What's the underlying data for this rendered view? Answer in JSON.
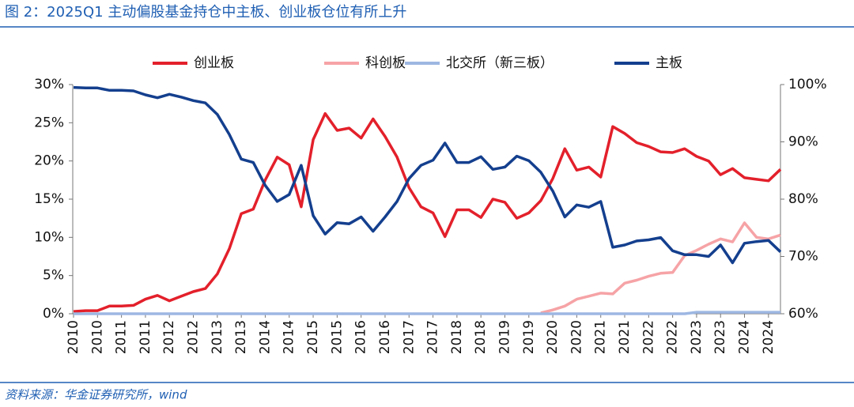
{
  "chart_data": {
    "type": "line",
    "title": "图 2：2025Q1 主动偏股基金持仓中主板、创业板仓位有所上升",
    "source": "资料来源：华金证券研究所，wind",
    "categories": [
      "2010",
      null,
      "2010",
      null,
      "2011",
      null,
      "2011",
      null,
      "2012",
      null,
      "2012",
      null,
      "2013",
      null,
      "2013",
      null,
      "2014",
      null,
      "2014",
      null,
      "2015",
      null,
      "2015",
      null,
      "2016",
      null,
      "2016",
      null,
      "2017",
      null,
      "2017",
      null,
      "2018",
      null,
      "2018",
      null,
      "2019",
      null,
      "2019",
      null,
      "2020",
      null,
      "2020",
      null,
      "2021",
      null,
      "2021",
      null,
      "2022",
      null,
      "2022",
      null,
      "2023",
      null,
      "2023",
      null,
      "2024",
      null,
      "2024",
      null
    ],
    "ylim": [
      0,
      30
    ],
    "yticks": [
      {
        "value": 0,
        "label": "0%"
      },
      {
        "value": 5,
        "label": "5%"
      },
      {
        "value": 10,
        "label": "10%"
      },
      {
        "value": 15,
        "label": "15%"
      },
      {
        "value": 20,
        "label": "20%"
      },
      {
        "value": 25,
        "label": "25%"
      },
      {
        "value": 30,
        "label": "30%"
      }
    ],
    "y2lim": [
      60,
      100
    ],
    "y2ticks": [
      {
        "value": 60,
        "label": "60%"
      },
      {
        "value": 70,
        "label": "70%"
      },
      {
        "value": 80,
        "label": "80%"
      },
      {
        "value": 90,
        "label": "90%"
      },
      {
        "value": 100,
        "label": "100%"
      }
    ],
    "grid": false,
    "legend": "top",
    "series": [
      {
        "name": "创业板",
        "color": "#e3202b",
        "values": [
          0.3,
          0.4,
          0.4,
          1.0,
          1.0,
          1.1,
          1.9,
          2.4,
          1.7,
          2.3,
          2.9,
          3.3,
          5.2,
          8.5,
          13.1,
          13.7,
          17.5,
          20.5,
          19.5,
          14.0,
          22.8,
          26.2,
          24.0,
          24.3,
          23.0,
          25.5,
          23.2,
          20.5,
          16.5,
          14.0,
          13.2,
          10.1,
          13.6,
          13.6,
          12.6,
          15.0,
          14.6,
          12.5,
          13.2,
          14.8,
          17.7,
          21.6,
          18.8,
          19.2,
          17.9,
          24.5,
          23.6,
          22.4,
          21.9,
          21.2,
          21.1,
          21.6,
          20.6,
          20.0,
          18.2,
          19.0,
          17.8,
          17.6,
          17.4,
          18.9
        ]
      },
      {
        "name": "科创板",
        "color": "#f6a3a6",
        "values": [
          null,
          null,
          null,
          null,
          null,
          null,
          null,
          null,
          null,
          null,
          null,
          null,
          null,
          null,
          null,
          null,
          null,
          null,
          null,
          null,
          null,
          null,
          null,
          null,
          null,
          null,
          null,
          null,
          null,
          null,
          null,
          null,
          null,
          null,
          null,
          null,
          null,
          null,
          null,
          0.1,
          0.5,
          1.0,
          1.9,
          2.3,
          2.7,
          2.6,
          4.0,
          4.4,
          4.9,
          5.3,
          5.4,
          7.6,
          8.3,
          9.1,
          9.8,
          9.4,
          11.9,
          10.0,
          9.8,
          10.3
        ]
      },
      {
        "name": "北交所（新三板）",
        "color": "#9db7e2",
        "values": [
          0,
          0,
          0,
          0,
          0,
          0,
          0,
          0,
          0,
          0,
          0,
          0,
          0,
          0,
          0,
          0,
          0,
          0,
          0,
          0,
          0,
          0,
          0,
          0,
          0,
          0,
          0,
          0,
          0,
          0,
          0,
          0,
          0,
          0,
          0,
          0,
          0,
          0,
          0,
          0,
          0,
          0,
          0,
          0,
          0,
          0,
          0,
          0,
          0,
          0,
          0,
          0,
          0.2,
          0.2,
          0.2,
          0.2,
          0.2,
          0.2,
          0.2,
          0.2
        ]
      },
      {
        "name": "主板",
        "color": "#143f8e",
        "axis": "y2",
        "values": [
          99.5,
          99.4,
          99.4,
          99.0,
          99.0,
          98.9,
          98.2,
          97.7,
          98.3,
          97.8,
          97.2,
          96.8,
          94.8,
          91.3,
          87.0,
          86.4,
          82.4,
          79.6,
          80.8,
          85.9,
          77.1,
          73.9,
          75.9,
          75.7,
          76.9,
          74.4,
          76.9,
          79.6,
          83.6,
          85.9,
          86.8,
          89.8,
          86.4,
          86.4,
          87.4,
          85.2,
          85.6,
          87.5,
          86.7,
          84.7,
          81.4,
          76.9,
          79.0,
          78.6,
          79.6,
          71.6,
          72.0,
          72.7,
          72.9,
          73.3,
          71.0,
          70.3,
          70.3,
          70.0,
          72.0,
          68.9,
          72.3,
          72.6,
          72.8,
          70.8
        ]
      }
    ]
  }
}
